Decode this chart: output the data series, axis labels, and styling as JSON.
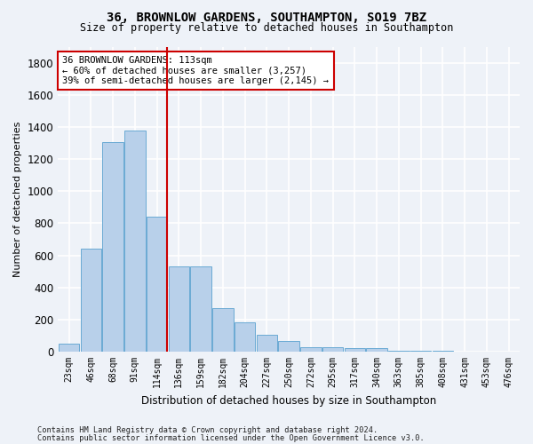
{
  "title1": "36, BROWNLOW GARDENS, SOUTHAMPTON, SO19 7BZ",
  "title2": "Size of property relative to detached houses in Southampton",
  "xlabel": "Distribution of detached houses by size in Southampton",
  "ylabel": "Number of detached properties",
  "categories": [
    "23sqm",
    "46sqm",
    "68sqm",
    "91sqm",
    "114sqm",
    "136sqm",
    "159sqm",
    "182sqm",
    "204sqm",
    "227sqm",
    "250sqm",
    "272sqm",
    "295sqm",
    "317sqm",
    "340sqm",
    "363sqm",
    "385sqm",
    "408sqm",
    "431sqm",
    "453sqm",
    "476sqm"
  ],
  "values": [
    50,
    640,
    1305,
    1380,
    840,
    530,
    530,
    270,
    185,
    105,
    65,
    30,
    30,
    25,
    20,
    8,
    8,
    5,
    3,
    3,
    3
  ],
  "bar_color": "#b8d0ea",
  "bar_edge_color": "#6aaad4",
  "highlight_index": 4,
  "red_line_color": "#cc0000",
  "annotation_line1": "36 BROWNLOW GARDENS: 113sqm",
  "annotation_line2": "← 60% of detached houses are smaller (3,257)",
  "annotation_line3": "39% of semi-detached houses are larger (2,145) →",
  "annotation_box_color": "#ffffff",
  "annotation_box_edge_color": "#cc0000",
  "ylim": [
    0,
    1900
  ],
  "yticks": [
    0,
    200,
    400,
    600,
    800,
    1000,
    1200,
    1400,
    1600,
    1800
  ],
  "footnote1": "Contains HM Land Registry data © Crown copyright and database right 2024.",
  "footnote2": "Contains public sector information licensed under the Open Government Licence v3.0.",
  "background_color": "#eef2f8",
  "grid_color": "#ffffff",
  "fig_width": 6.0,
  "fig_height": 5.0,
  "dpi": 100
}
